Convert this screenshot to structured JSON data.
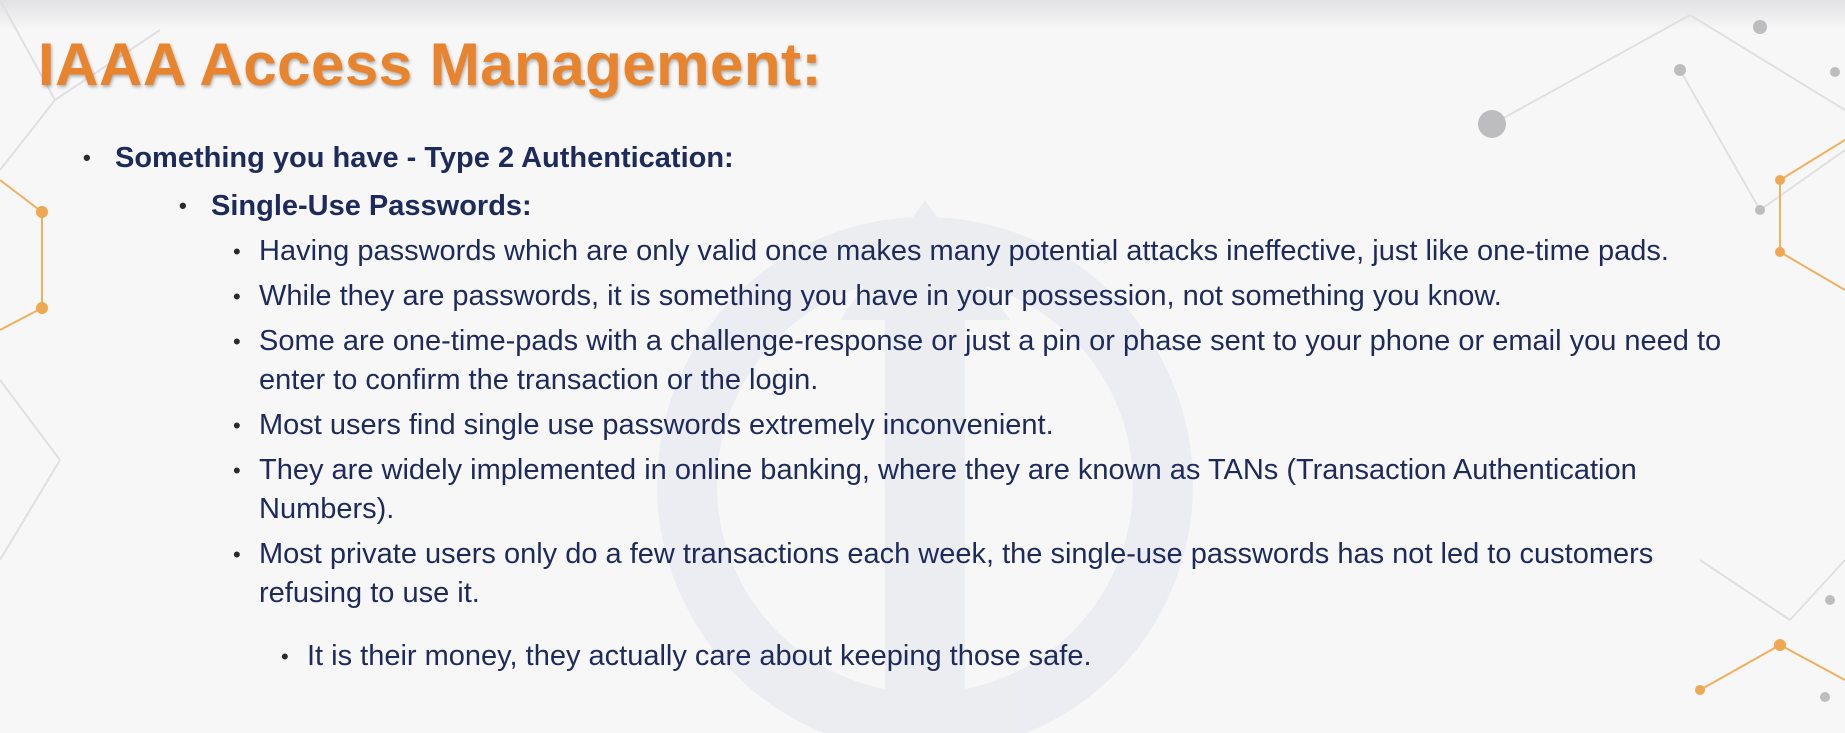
{
  "slide": {
    "title": "IAAA Access Management:",
    "level1": "Something you have - Type 2 Authentication:",
    "level2": "Single-Use Passwords:",
    "bullets": [
      "Having passwords which are only valid once makes many potential attacks ineffective, just like one-time pads.",
      "While they are passwords, it is something you have in your possession, not something you know.",
      "Some are one-time-pads with a challenge-response or just a pin or phase sent to your phone or email you need to enter to confirm the transaction or the login.",
      "Most users find single use passwords extremely inconvenient.",
      "They are widely implemented in online banking, where they are known as TANs (Transaction Authentication Numbers).",
      "Most private users only do a few transactions each week, the single-use passwords has not led to customers refusing to use it."
    ],
    "sub_bullet": "It is their money, they actually care about keeping those safe."
  },
  "colors": {
    "title": "#e8832e",
    "text": "#1e2a5a",
    "accent_node": "#f0a850",
    "grey_node": "#bdbdc0"
  }
}
